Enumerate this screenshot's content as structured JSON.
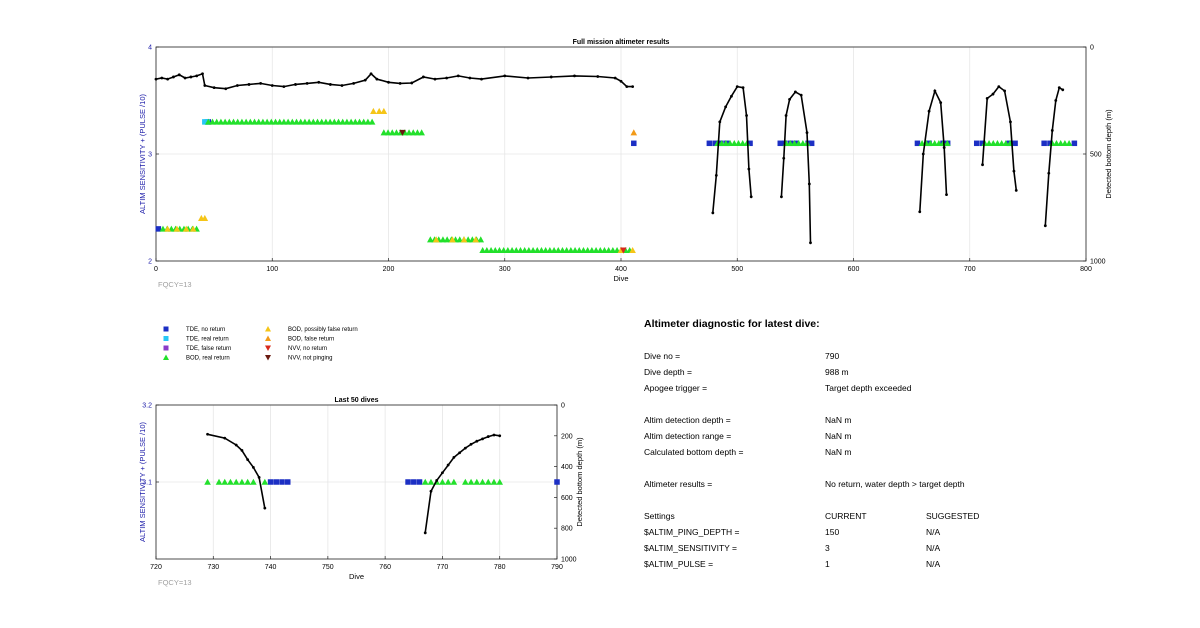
{
  "chart_data": [
    {
      "type": "scatter",
      "title": "Full mission altimeter results",
      "xlabel": "Dive",
      "ylabel": "ALTIM SENSITIVITY + (PULSE /10)",
      "y2label": "Detected bottom depth (m)",
      "xlim": [
        0,
        800
      ],
      "ylim": [
        2,
        4
      ],
      "y2lim": [
        0,
        1000
      ],
      "y2_reversed": true,
      "xticks": [
        "0",
        "100",
        "200",
        "300",
        "400",
        "500",
        "600",
        "700",
        "800"
      ],
      "yticks": [
        "2",
        "3",
        "4"
      ],
      "y2ticks": [
        "0",
        "500",
        "1000"
      ],
      "grid": true,
      "note": "FQCY=13",
      "depth_segments": [
        [
          [
            0,
            150
          ],
          [
            5,
            145
          ],
          [
            10,
            150
          ],
          [
            15,
            140
          ],
          [
            20,
            130
          ],
          [
            25,
            145
          ],
          [
            30,
            140
          ],
          [
            35,
            135
          ],
          [
            40,
            125
          ],
          [
            42,
            180
          ],
          [
            50,
            190
          ],
          [
            60,
            195
          ],
          [
            70,
            180
          ],
          [
            80,
            175
          ],
          [
            90,
            170
          ],
          [
            100,
            180
          ],
          [
            110,
            185
          ],
          [
            120,
            175
          ],
          [
            130,
            170
          ],
          [
            140,
            165
          ],
          [
            150,
            175
          ],
          [
            160,
            180
          ],
          [
            170,
            170
          ],
          [
            180,
            155
          ],
          [
            185,
            125
          ],
          [
            190,
            150
          ],
          [
            200,
            165
          ],
          [
            210,
            170
          ],
          [
            220,
            168
          ],
          [
            230,
            140
          ],
          [
            240,
            150
          ],
          [
            250,
            145
          ],
          [
            260,
            135
          ],
          [
            270,
            145
          ],
          [
            280,
            150
          ],
          [
            300,
            135
          ],
          [
            320,
            145
          ],
          [
            340,
            140
          ],
          [
            360,
            135
          ],
          [
            380,
            138
          ],
          [
            395,
            145
          ],
          [
            400,
            160
          ],
          [
            405,
            185
          ],
          [
            410,
            185
          ]
        ],
        [
          [
            479,
            775
          ],
          [
            482,
            600
          ],
          [
            485,
            350
          ],
          [
            490,
            280
          ],
          [
            495,
            230
          ],
          [
            500,
            185
          ],
          [
            505,
            190
          ],
          [
            508,
            320
          ],
          [
            510,
            570
          ],
          [
            512,
            700
          ]
        ],
        [
          [
            538,
            700
          ],
          [
            540,
            520
          ],
          [
            542,
            320
          ],
          [
            545,
            245
          ],
          [
            550,
            210
          ],
          [
            555,
            225
          ],
          [
            560,
            400
          ],
          [
            562,
            640
          ],
          [
            563,
            915
          ]
        ],
        [
          [
            657,
            770
          ],
          [
            660,
            500
          ],
          [
            665,
            300
          ],
          [
            670,
            205
          ],
          [
            675,
            260
          ],
          [
            678,
            470
          ],
          [
            680,
            690
          ]
        ],
        [
          [
            711,
            550
          ],
          [
            715,
            240
          ],
          [
            720,
            220
          ],
          [
            725,
            185
          ],
          [
            730,
            205
          ],
          [
            735,
            350
          ],
          [
            738,
            580
          ],
          [
            740,
            670
          ]
        ],
        [
          [
            765,
            835
          ],
          [
            768,
            590
          ],
          [
            771,
            390
          ],
          [
            774,
            250
          ],
          [
            777,
            190
          ],
          [
            780,
            200
          ]
        ]
      ],
      "series": [
        {
          "name": "TDE, no return",
          "color": "#1c2fc4",
          "marker": "square",
          "points": [
            [
              2,
              2.3
            ],
            [
              45,
              3.3
            ],
            [
              411,
              3.1
            ],
            [
              476,
              3.1
            ],
            [
              481,
              3.1
            ],
            [
              486,
              3.1
            ],
            [
              491,
              3.1
            ],
            [
              511,
              3.1
            ],
            [
              537,
              3.1
            ],
            [
              541,
              3.1
            ],
            [
              546,
              3.1
            ],
            [
              551,
              3.1
            ],
            [
              561,
              3.1
            ],
            [
              564,
              3.1
            ],
            [
              655,
              3.1
            ],
            [
              665,
              3.1
            ],
            [
              677,
              3.1
            ],
            [
              681,
              3.1
            ],
            [
              706,
              3.1
            ],
            [
              711,
              3.1
            ],
            [
              734,
              3.1
            ],
            [
              739,
              3.1
            ],
            [
              764,
              3.1
            ],
            [
              769,
              3.1
            ],
            [
              790,
              3.1
            ]
          ]
        },
        {
          "name": "TDE, real return",
          "color": "#27c7f5",
          "marker": "square",
          "points": [
            [
              42,
              3.3
            ],
            [
              44,
              3.3
            ]
          ]
        },
        {
          "name": "TDE, false return",
          "color": "#8a3bc8",
          "marker": "square",
          "points": []
        },
        {
          "name": "BOD, real return",
          "color": "#22e02b",
          "marker": "triangle-up",
          "segments": [
            [
              6,
              36,
              2.3
            ],
            [
              45,
              186,
              3.3
            ],
            [
              196,
              230,
              3.2
            ],
            [
              236,
              280,
              2.2
            ],
            [
              281,
              410,
              2.1
            ],
            [
              483,
              511,
              3.1
            ],
            [
              542,
              561,
              3.1
            ],
            [
              659,
              681,
              3.1
            ],
            [
              713,
              737,
              3.1
            ],
            [
              771,
              789,
              3.1
            ]
          ]
        },
        {
          "name": "BOD, possibly false return",
          "color": "#f5c518",
          "marker": "triangle-up",
          "points": [
            [
              10,
              2.3
            ],
            [
              18,
              2.3
            ],
            [
              26,
              2.3
            ],
            [
              32,
              2.3
            ],
            [
              39,
              2.4
            ],
            [
              42,
              2.4
            ],
            [
              187,
              3.4
            ],
            [
              192,
              3.4
            ],
            [
              196,
              3.4
            ],
            [
              241,
              2.2
            ],
            [
              255,
              2.2
            ],
            [
              265,
              2.2
            ],
            [
              275,
              2.2
            ],
            [
              400,
              2.1
            ],
            [
              410,
              2.1
            ]
          ]
        },
        {
          "name": "BOD, false return",
          "color": "#f29a18",
          "marker": "triangle-up",
          "points": [
            [
              411,
              3.2
            ]
          ]
        },
        {
          "name": "NVV, no return",
          "color": "#d8281c",
          "marker": "triangle-down",
          "points": [
            [
              402,
              2.1
            ]
          ]
        },
        {
          "name": "NVV, not pinging",
          "color": "#6a1a10",
          "marker": "triangle-down",
          "points": [
            [
              212,
              3.2
            ]
          ]
        }
      ]
    },
    {
      "type": "scatter",
      "title": "Last 50 dives",
      "xlabel": "Dive",
      "ylabel": "ALTIM SENSITIVITY + (PULSE /10)",
      "y2label": "Detected bottom depth (m)",
      "xlim": [
        720,
        790
      ],
      "ylim": [
        3.0,
        3.2
      ],
      "y2lim": [
        0,
        1000
      ],
      "y2_reversed": true,
      "xticks": [
        "720",
        "730",
        "740",
        "750",
        "760",
        "770",
        "780",
        "790"
      ],
      "yticks": [
        "3.1",
        "3.2"
      ],
      "y2ticks": [
        "0",
        "200",
        "400",
        "600",
        "800",
        "1000"
      ],
      "grid": true,
      "note": "FQCY=13",
      "depth_segments": [
        [
          [
            729,
            190
          ],
          [
            732,
            215
          ],
          [
            734,
            260
          ],
          [
            735,
            295
          ],
          [
            736,
            355
          ],
          [
            737,
            405
          ],
          [
            738,
            470
          ],
          [
            739,
            670
          ]
        ],
        [
          [
            767,
            830
          ],
          [
            768,
            560
          ],
          [
            769,
            490
          ],
          [
            770,
            440
          ],
          [
            771,
            390
          ],
          [
            772,
            340
          ],
          [
            773,
            310
          ],
          [
            774,
            280
          ],
          [
            775,
            255
          ],
          [
            776,
            235
          ],
          [
            777,
            220
          ],
          [
            778,
            205
          ],
          [
            779,
            195
          ],
          [
            780,
            200
          ]
        ]
      ],
      "series": [
        {
          "name": "TDE, no return",
          "color": "#1c2fc4",
          "marker": "square",
          "points": [
            [
              740,
              3.1
            ],
            [
              741,
              3.1
            ],
            [
              742,
              3.1
            ],
            [
              743,
              3.1
            ],
            [
              764,
              3.1
            ],
            [
              765,
              3.1
            ],
            [
              766,
              3.1
            ],
            [
              790,
              3.1
            ]
          ]
        },
        {
          "name": "BOD, real return",
          "color": "#22e02b",
          "marker": "triangle-up",
          "points": [
            [
              729,
              3.1
            ],
            [
              731,
              3.1
            ],
            [
              732,
              3.1
            ],
            [
              733,
              3.1
            ],
            [
              734,
              3.1
            ],
            [
              735,
              3.1
            ],
            [
              736,
              3.1
            ],
            [
              737,
              3.1
            ],
            [
              739,
              3.1
            ],
            [
              767,
              3.1
            ],
            [
              768,
              3.1
            ],
            [
              769,
              3.1
            ],
            [
              770,
              3.1
            ],
            [
              771,
              3.1
            ],
            [
              772,
              3.1
            ],
            [
              774,
              3.1
            ],
            [
              775,
              3.1
            ],
            [
              776,
              3.1
            ],
            [
              777,
              3.1
            ],
            [
              778,
              3.1
            ],
            [
              779,
              3.1
            ],
            [
              780,
              3.1
            ]
          ]
        }
      ]
    }
  ],
  "legend": [
    {
      "label": "TDE, no return",
      "color": "#1c2fc4",
      "marker": "square"
    },
    {
      "label": "TDE, real return",
      "color": "#27c7f5",
      "marker": "square"
    },
    {
      "label": "TDE, false return",
      "color": "#8a3bc8",
      "marker": "square"
    },
    {
      "label": "BOD, real return",
      "color": "#22e02b",
      "marker": "triangle-up"
    },
    {
      "label": "BOD, possibly false return",
      "color": "#f5c518",
      "marker": "triangle-up"
    },
    {
      "label": "BOD, false return",
      "color": "#f29a18",
      "marker": "triangle-up"
    },
    {
      "label": "NVV, no return",
      "color": "#d8281c",
      "marker": "triangle-down"
    },
    {
      "label": "NVV, not pinging",
      "color": "#6a1a10",
      "marker": "triangle-down"
    }
  ],
  "diagnostic": {
    "title": "Altimeter diagnostic for latest dive:",
    "dive_no_label": "Dive no =",
    "dive_no": "790",
    "dive_depth_label": "Dive depth =",
    "dive_depth": "988 m",
    "apogee_label": "Apogee trigger =",
    "apogee": "Target depth exceeded",
    "detect_depth_label": "Altim detection depth =",
    "detect_depth": "NaN m",
    "detect_range_label": "Altim detection range =",
    "detect_range": "NaN m",
    "bottom_depth_label": "Calculated bottom depth =",
    "bottom_depth": "NaN m",
    "results_label": "Altimeter results =",
    "results": "No return, water depth > target depth",
    "settings_label": "Settings",
    "current_label": "CURRENT",
    "suggested_label": "SUGGESTED",
    "ping_depth_label": "$ALTIM_PING_DEPTH =",
    "ping_depth_current": "150",
    "ping_depth_suggested": "N/A",
    "sensitivity_label": "$ALTIM_SENSITIVITY =",
    "sensitivity_current": "3",
    "sensitivity_suggested": "N/A",
    "pulse_label": "$ALTIM_PULSE =",
    "pulse_current": "1",
    "pulse_suggested": "N/A"
  }
}
